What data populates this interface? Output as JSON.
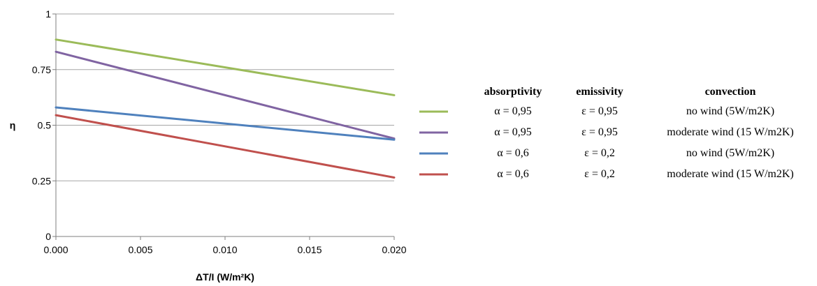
{
  "chart_data": {
    "type": "line",
    "xlabel": "ΔT/I (W/m²K)",
    "ylabel": "η",
    "xlim": [
      0,
      0.02
    ],
    "ylim": [
      0,
      1
    ],
    "x_ticks": [
      "0.000",
      "0.005",
      "0.010",
      "0.015",
      "0.020"
    ],
    "x_tick_values": [
      0,
      0.005,
      0.01,
      0.015,
      0.02
    ],
    "y_ticks": [
      "0",
      "0.25",
      "0.5",
      "0.75",
      "1"
    ],
    "y_tick_values": [
      0,
      0.25,
      0.5,
      0.75,
      1
    ],
    "grid": "horizontal",
    "legend_position": "right",
    "legend_headers": {
      "absorptivity": "absorptivity",
      "emissivity": "emissivity",
      "convection": "convection"
    },
    "series": [
      {
        "absorptivity": "α = 0,95",
        "emissivity": "ε = 0,95",
        "convection": "no wind (5W/m2K)",
        "color": "#9BBB59",
        "x": [
          0,
          0.02
        ],
        "y": [
          0.885,
          0.635
        ]
      },
      {
        "absorptivity": "α = 0,95",
        "emissivity": "ε = 0,95",
        "convection": "moderate wind (15 W/m2K)",
        "color": "#8064A2",
        "x": [
          0,
          0.02
        ],
        "y": [
          0.83,
          0.44
        ]
      },
      {
        "absorptivity": "α = 0,6",
        "emissivity": "ε = 0,2",
        "convection": "no wind (5W/m2K)",
        "color": "#4F81BD",
        "x": [
          0,
          0.02
        ],
        "y": [
          0.58,
          0.435
        ]
      },
      {
        "absorptivity": "α = 0,6",
        "emissivity": "ε = 0,2",
        "convection": "moderate wind (15 W/m2K)",
        "color": "#C0504D",
        "x": [
          0,
          0.02
        ],
        "y": [
          0.545,
          0.265
        ]
      }
    ]
  }
}
